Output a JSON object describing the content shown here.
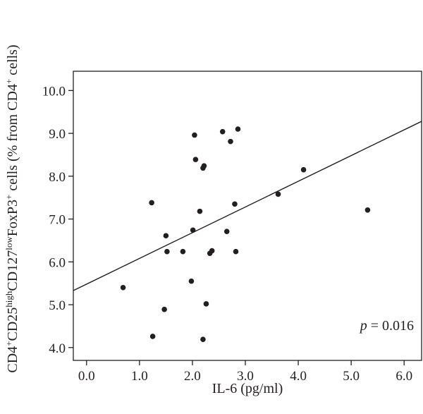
{
  "chart_data": {
    "type": "scatter",
    "title": "",
    "xlabel": "IL-6 (pg/ml)",
    "ylabel": {
      "p1": "CD4",
      "s1": "+",
      "p2": "CD25",
      "s2": "high",
      "p3": "CD127",
      "s3": "low",
      "p4": "FoxP3",
      "s4": "+",
      "p5": " cells (% from CD4",
      "s5": "+",
      "p6": " cells)"
    },
    "xlim": [
      -0.25,
      6.33
    ],
    "ylim": [
      3.7,
      10.45
    ],
    "x_ticks": [
      0.0,
      1.0,
      2.0,
      3.0,
      4.0,
      5.0,
      6.0
    ],
    "x_tick_labels": [
      "0.0",
      "1.0",
      "2.0",
      "3.0",
      "4.0",
      "5.0",
      "6.0"
    ],
    "y_ticks": [
      4.0,
      5.0,
      6.0,
      7.0,
      8.0,
      9.0,
      10.0
    ],
    "y_tick_labels": [
      "4.0",
      "5.0",
      "6.0",
      "7.0",
      "8.0",
      "9.0",
      "10.0"
    ],
    "grid": false,
    "legend": "none",
    "points": [
      {
        "x": 0.69,
        "y": 5.4
      },
      {
        "x": 1.23,
        "y": 7.38
      },
      {
        "x": 1.25,
        "y": 4.26
      },
      {
        "x": 1.47,
        "y": 4.89
      },
      {
        "x": 1.5,
        "y": 6.61
      },
      {
        "x": 1.52,
        "y": 6.24
      },
      {
        "x": 1.82,
        "y": 6.24
      },
      {
        "x": 1.98,
        "y": 5.55
      },
      {
        "x": 2.01,
        "y": 6.74
      },
      {
        "x": 2.04,
        "y": 8.96
      },
      {
        "x": 2.06,
        "y": 8.39
      },
      {
        "x": 2.14,
        "y": 7.18
      },
      {
        "x": 2.2,
        "y": 8.19
      },
      {
        "x": 2.22,
        "y": 8.24
      },
      {
        "x": 2.2,
        "y": 4.19
      },
      {
        "x": 2.26,
        "y": 5.02
      },
      {
        "x": 2.33,
        "y": 6.2
      },
      {
        "x": 2.37,
        "y": 6.26
      },
      {
        "x": 2.57,
        "y": 9.04
      },
      {
        "x": 2.65,
        "y": 6.71
      },
      {
        "x": 2.72,
        "y": 8.81
      },
      {
        "x": 2.8,
        "y": 7.35
      },
      {
        "x": 2.82,
        "y": 6.24
      },
      {
        "x": 2.86,
        "y": 9.1
      },
      {
        "x": 3.62,
        "y": 7.58
      },
      {
        "x": 4.1,
        "y": 8.15
      },
      {
        "x": 5.31,
        "y": 7.21
      }
    ],
    "regression_line": {
      "x": [
        -0.25,
        6.33
      ],
      "y": [
        5.33,
        9.28
      ]
    },
    "annotation": {
      "p_symbol": "p",
      "p_rest": " = 0.016",
      "placement": "bottom-right"
    },
    "colors": {
      "points": "#231f20",
      "line": "#231f20",
      "axes": "#231f20",
      "text": "#231f20",
      "background": "#ffffff"
    }
  }
}
